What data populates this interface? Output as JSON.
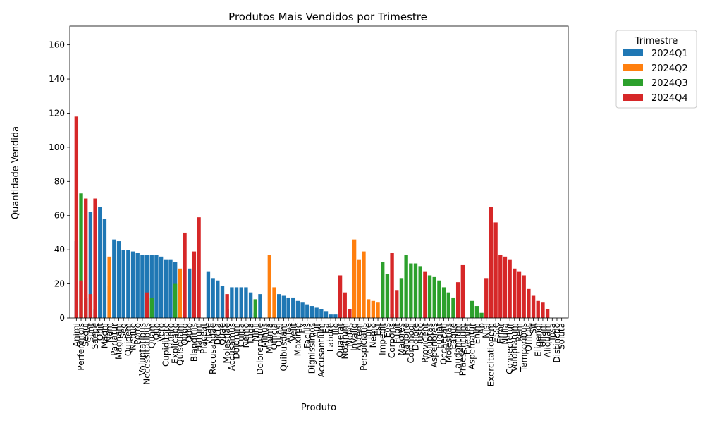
{
  "chart_data": {
    "type": "bar",
    "stacked": true,
    "title": "Produtos Mais Vendidos por Trimestre",
    "xlabel": "Produto",
    "ylabel": "Quantidade Vendida",
    "ylim": [
      0,
      171
    ],
    "yticks": [
      0,
      20,
      40,
      60,
      80,
      100,
      120,
      140,
      160
    ],
    "grid": false,
    "legend": {
      "title": "Trimestre",
      "placement": "outside-right"
    },
    "categories": [
      "Animi",
      "Perferendis",
      "Sequi",
      "Sunt",
      "Saepe",
      "Odit",
      "Magni",
      "Nam",
      "Pariatur",
      "Magnam",
      "Sed",
      "Quidem",
      "Neque",
      "Porro",
      "Voluptatibus",
      "Necessitatibus",
      "Quam",
      "Quo",
      "Vero",
      "Cupiditate",
      "Libero",
      "Explicabo",
      "Quisquam",
      "Quod",
      "Odio",
      "Blanditiis",
      "Harum",
      "Placeat",
      "Vitae",
      "Recusandae",
      "Dicta",
      "Quae",
      "Molestiae",
      "Accusamus",
      "Dolorum",
      "Culpa",
      "Nemo",
      "Fuga",
      "Nihil",
      "Doloremque",
      "Minus",
      "Minima",
      "Officia",
      "Quasi",
      "Quibusdam",
      "Alias",
      "Velit",
      "Maxime",
      "Ex",
      "Facilis",
      "Dignissimos",
      "Aut",
      "Accusantium",
      "Ea",
      "Labore",
      "Illo",
      "Quaerat",
      "Nostrum",
      "Nobis",
      "Invalid",
      "Autem",
      "Perspiciatis",
      "Iure",
      "Nemo2",
      "Est",
      "Impedit",
      "Eos",
      "Corporis",
      "Fugit",
      "Maiores",
      "Ratione",
      "Commodi",
      "Dolore",
      "Iusto",
      "Provident",
      "Voluptas",
      "Asperiores",
      "Fugiat",
      "Occaecati",
      "Molestias",
      "Eaque",
      "Laudantium",
      "Praesentium",
      "Eveniet",
      "Aspernatur",
      "Enim",
      "Ab",
      "Nisi",
      "Exercitationem",
      "Esse",
      "Error",
      "Nulla",
      "Consectetur",
      "Voluptatum",
      "Rem",
      "Temporibus",
      "Officiis",
      "Sit",
      "Eligendi",
      "Ullam",
      "Aliquam",
      "Ipsa",
      "Distinctio",
      "Soluta"
    ],
    "display_labels": [
      "Animi",
      "Perferendis",
      "Sequi",
      "Sunt",
      "Saepe",
      "Odit",
      "Magni",
      "Nam",
      "Pariatur",
      "Magnam",
      "Sed",
      "Quidem",
      "Neque",
      "Porro",
      "Voluptatibus",
      "Necessitatibus",
      "Quam",
      "Quo",
      "Vero",
      "Cupiditate",
      "Libero",
      "Explicabo",
      "Quisquam",
      "Quod",
      "Odio",
      "Blanditiis",
      "Harum",
      "Placeat",
      "Vitae",
      "Recusandae",
      "Dicta",
      "Quae",
      "Molestiae",
      "Accusamus",
      "Dolorum",
      "Culpa",
      "Nemo",
      "Fuga",
      "Nihil",
      "Doloremque",
      "Minus",
      "Minima",
      "Officia",
      "Quasi",
      "Quibusdam",
      "Alias",
      "Velit",
      "Maxime",
      "Ex",
      "Facilis",
      "Dignissimos",
      "Aut",
      "Accusantium",
      "Ea",
      "Labore",
      "Illo",
      "Quaerat",
      "Nostrum",
      "Nobis",
      "Invalid",
      "Autem",
      "Perspiciatis",
      "Iure",
      "Nemo",
      "Est",
      "Impedit",
      "Eos",
      "Corporis",
      "Fugit",
      "Maiores",
      "Ratione",
      "Commodi",
      "Dolore",
      "Iusto",
      "Provident",
      "Voluptas",
      "Asperiores",
      "Fugiat",
      "Occaecati",
      "Molestias",
      "Eaque",
      "Laudantium",
      "Praesentium",
      "Eveniet",
      "Aspernatur",
      "Enim",
      "Ab",
      "Nisi",
      "Exercitationem",
      "Esse",
      "Error",
      "Nulla",
      "Consectetur",
      "Voluptatum",
      "Rem",
      "Temporibus",
      "Officiis",
      "Sit",
      "Eligendi",
      "Ullam",
      "Aliquam",
      "Ipsa",
      "Distinctio",
      "Soluta"
    ],
    "series": [
      {
        "name": "2024Q1",
        "color": "#1f77b4",
        "values": [
          45,
          0,
          12,
          62,
          5,
          65,
          58,
          19,
          46,
          45,
          40,
          40,
          39,
          38,
          37,
          37,
          37,
          37,
          36,
          34,
          34,
          33,
          2,
          0,
          29,
          0,
          0,
          0,
          27,
          23,
          22,
          19,
          5,
          18,
          18,
          18,
          18,
          15,
          3,
          14,
          0,
          0,
          0,
          14,
          13,
          12,
          12,
          10,
          9,
          8,
          7,
          6,
          5,
          4,
          2,
          2,
          0,
          0,
          0,
          0,
          0,
          0,
          0,
          0,
          0,
          0,
          0,
          0,
          0,
          0,
          0,
          0,
          0,
          0,
          0,
          0,
          0,
          0,
          0,
          0,
          0,
          0,
          0,
          0,
          0,
          0,
          0,
          0,
          0,
          0,
          0,
          0,
          0,
          0,
          0,
          0,
          0,
          0,
          0,
          0,
          0,
          0,
          0,
          0
        ]
      },
      {
        "name": "2024Q2",
        "color": "#ff7f0e",
        "values": [
          0,
          0,
          0,
          0,
          0,
          0,
          0,
          36,
          0,
          0,
          0,
          0,
          0,
          0,
          0,
          0,
          0,
          0,
          0,
          0,
          0,
          0,
          29,
          0,
          0,
          0,
          0,
          0,
          0,
          0,
          0,
          0,
          0,
          0,
          0,
          0,
          0,
          0,
          0,
          0,
          0,
          37,
          18,
          0,
          0,
          0,
          0,
          0,
          0,
          0,
          0,
          0,
          0,
          0,
          0,
          0,
          0,
          0,
          0,
          46,
          34,
          39,
          11,
          10,
          9,
          0,
          0,
          0,
          0,
          0,
          0,
          0,
          0,
          0,
          0,
          0,
          0,
          0,
          0,
          0,
          0,
          0,
          0,
          0,
          0,
          0,
          0,
          0,
          0,
          0,
          0,
          0,
          0,
          0,
          0,
          0,
          0,
          0,
          0,
          0,
          0,
          0,
          0,
          0
        ]
      },
      {
        "name": "2024Q3",
        "color": "#2ca02c",
        "values": [
          0,
          73,
          0,
          0,
          0,
          0,
          0,
          0,
          0,
          0,
          0,
          0,
          0,
          0,
          0,
          0,
          12,
          0,
          0,
          0,
          0,
          20,
          0,
          0,
          0,
          0,
          0,
          0,
          0,
          0,
          0,
          0,
          0,
          0,
          0,
          0,
          0,
          0,
          11,
          0,
          0,
          0,
          0,
          0,
          0,
          0,
          0,
          0,
          0,
          0,
          0,
          0,
          0,
          0,
          0,
          0,
          0,
          0,
          0,
          0,
          0,
          0,
          0,
          0,
          0,
          33,
          26,
          2,
          0,
          23,
          37,
          32,
          32,
          30,
          0,
          25,
          24,
          22,
          18,
          15,
          12,
          0,
          0,
          0,
          10,
          7,
          3,
          0,
          0,
          0,
          0,
          0,
          0,
          0,
          0,
          0,
          0,
          0,
          0,
          0,
          0,
          0,
          0,
          0
        ]
      },
      {
        "name": "2024Q4",
        "color": "#d62728",
        "values": [
          118,
          22,
          70,
          14,
          70,
          0,
          0,
          0,
          0,
          0,
          0,
          0,
          0,
          0,
          0,
          15,
          0,
          0,
          0,
          0,
          0,
          0,
          0,
          50,
          0,
          39,
          59,
          0,
          0,
          0,
          0,
          0,
          14,
          0,
          0,
          0,
          0,
          0,
          0,
          0,
          0,
          0,
          0,
          0,
          0,
          0,
          0,
          0,
          0,
          0,
          0,
          0,
          0,
          0,
          0,
          0,
          25,
          15,
          5,
          0,
          0,
          0,
          0,
          0,
          0,
          0,
          0,
          38,
          16,
          0,
          0,
          0,
          0,
          0,
          27,
          0,
          0,
          0,
          0,
          0,
          0,
          21,
          31,
          0,
          0,
          0,
          0,
          23,
          65,
          56,
          37,
          36,
          34,
          29,
          27,
          25,
          17,
          13,
          10,
          9,
          5,
          0,
          0,
          0
        ]
      }
    ]
  }
}
